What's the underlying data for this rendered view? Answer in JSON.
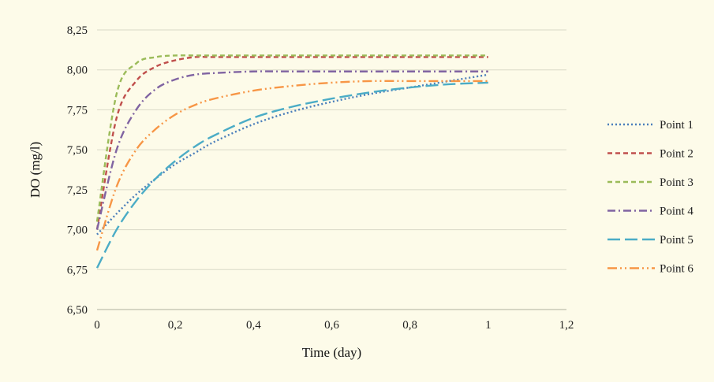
{
  "chart_data": {
    "type": "line",
    "title": "",
    "xlabel": "Time (day)",
    "ylabel": "DO (mg/l)",
    "xlim": [
      0,
      1.2
    ],
    "ylim": [
      6.5,
      8.25
    ],
    "x_ticks": [
      "0",
      "0,2",
      "0,4",
      "0,6",
      "0,8",
      "1",
      "1,2"
    ],
    "y_ticks": [
      "6,50",
      "6,75",
      "7,00",
      "7,25",
      "7,50",
      "7,75",
      "8,00",
      "8,25"
    ],
    "grid": "horizontal",
    "legend_position": "right",
    "x": [
      0,
      0.05,
      0.1,
      0.15,
      0.2,
      0.25,
      0.3,
      0.4,
      0.5,
      0.6,
      0.7,
      0.8,
      0.9,
      1.0
    ],
    "series": [
      {
        "name": "Point 1",
        "color": "#4a7ebb",
        "dash": "dotted",
        "values": [
          6.97,
          7.1,
          7.22,
          7.32,
          7.41,
          7.48,
          7.55,
          7.66,
          7.74,
          7.8,
          7.85,
          7.89,
          7.93,
          7.97
        ]
      },
      {
        "name": "Point 2",
        "color": "#c0504d",
        "dash": "dashed",
        "values": [
          7.0,
          7.7,
          7.93,
          8.02,
          8.06,
          8.08,
          8.08,
          8.08,
          8.08,
          8.08,
          8.08,
          8.08,
          8.08,
          8.08
        ]
      },
      {
        "name": "Point 3",
        "color": "#9bbb59",
        "dash": "dashed",
        "values": [
          7.05,
          7.85,
          8.04,
          8.08,
          8.09,
          8.09,
          8.09,
          8.09,
          8.09,
          8.09,
          8.09,
          8.09,
          8.09,
          8.09
        ]
      },
      {
        "name": "Point 4",
        "color": "#8064a2",
        "dash": "dashdot",
        "values": [
          7.0,
          7.5,
          7.75,
          7.88,
          7.94,
          7.97,
          7.98,
          7.99,
          7.99,
          7.99,
          7.99,
          7.99,
          7.99,
          7.99
        ]
      },
      {
        "name": "Point 5",
        "color": "#4bacc6",
        "dash": "longdash",
        "values": [
          6.76,
          7.0,
          7.18,
          7.32,
          7.43,
          7.52,
          7.59,
          7.7,
          7.77,
          7.82,
          7.86,
          7.89,
          7.91,
          7.92
        ]
      },
      {
        "name": "Point 6",
        "color": "#f79646",
        "dash": "dashdotdot",
        "values": [
          6.87,
          7.27,
          7.5,
          7.63,
          7.72,
          7.78,
          7.82,
          7.87,
          7.9,
          7.92,
          7.93,
          7.93,
          7.93,
          7.93
        ]
      }
    ]
  }
}
